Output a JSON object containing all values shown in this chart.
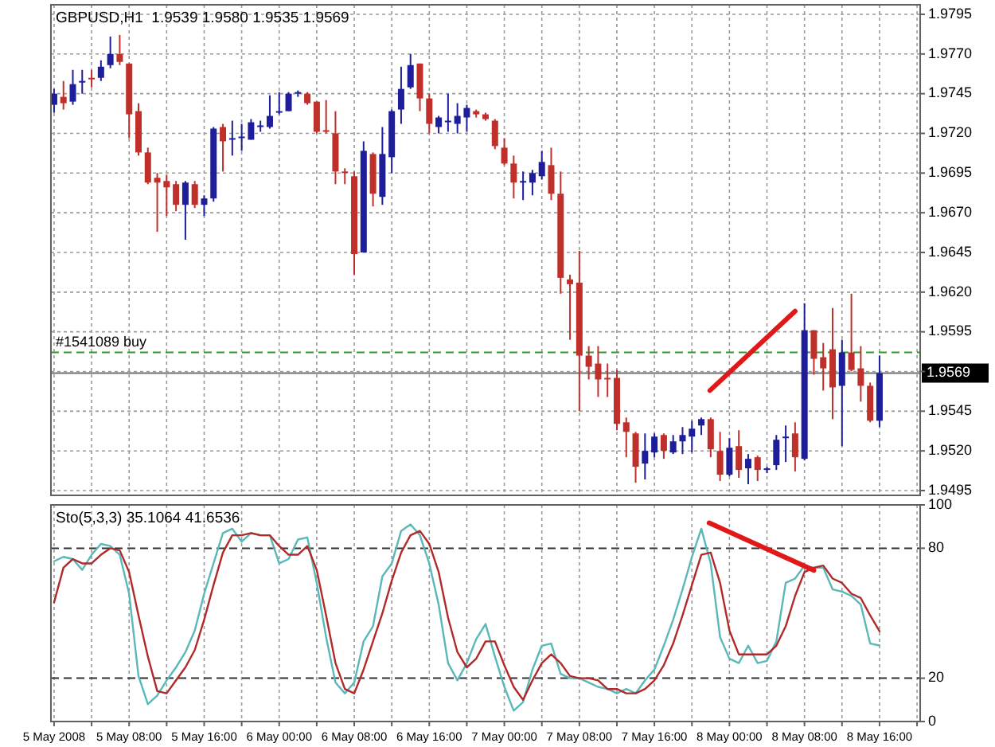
{
  "chart_data": [
    {
      "type": "candlestick",
      "title": "GBPUSD,H1  1.9539 1.9580 1.9535 1.9569",
      "colors": [
        "#1e1e9a",
        "#c0302a",
        "#1e1e9a",
        "#1e1e9a",
        "#c0302a",
        "#1e1e9a",
        "#1e1e9a",
        "#c0302a",
        "#c0302a",
        "#c0302a",
        "#c0302a",
        "#c0302a",
        "#c0302a",
        "#c0302a",
        "#1e1e9a",
        "#c0302a",
        "#1e1e9a",
        "#1e1e9a",
        "#c0302a",
        "#1e1e9a",
        "#1e1e9a",
        "#1e1e9a",
        "#1e1e9a",
        "#1e1e9a",
        "#1e1e9a",
        "#1e1e9a",
        "#1e1e9a",
        "#c0302a",
        "#c0302a",
        "#c0302a",
        "#c0302a",
        "#c0302a",
        "#c0302a",
        "#1e1e9a",
        "#c0302a",
        "#1e1e9a",
        "#1e1e9a",
        "#1e1e9a",
        "#1e1e9a",
        "#c0302a",
        "#c0302a",
        "#1e1e9a",
        "#1e1e9a",
        "#1e1e9a",
        "#1e1e9a",
        "#c0302a",
        "#c0302a",
        "#c0302a",
        "#c0302a",
        "#c0302a",
        "#1e1e9a",
        "#1e1e9a",
        "#1e1e9a",
        "#c0302a",
        "#c0302a",
        "#c0302a",
        "#c0302a",
        "#c0302a",
        "#c0302a",
        "#c0302a",
        "#c0302a",
        "#c0302a",
        "#c0302a",
        "#1e1e9a",
        "#1e1e9a",
        "#c0302a",
        "#1e1e9a",
        "#1e1e9a",
        "#1e1e9a",
        "#1e1e9a",
        "#c0302a",
        "#c0302a",
        "#1e1e9a",
        "#c0302a",
        "#1e1e9a",
        "#c0302a",
        "#1e1e9a",
        "#1e1e9a",
        "#1e1e9a",
        "#c0302a",
        "#1e1e9a",
        "#c0302a",
        "#c0302a",
        "#c0302a",
        "#1e1e9a",
        "#c0302a",
        "#c0302a",
        "#c0302a",
        "#1e1e9a"
      ],
      "x": [
        "2008-05-05T00:00",
        "2008-05-05T01:00",
        "2008-05-05T02:00",
        "2008-05-05T03:00",
        "2008-05-05T04:00",
        "2008-05-05T05:00",
        "2008-05-05T06:00",
        "2008-05-05T07:00",
        "2008-05-05T08:00",
        "2008-05-05T09:00",
        "2008-05-05T10:00",
        "2008-05-05T11:00",
        "2008-05-05T12:00",
        "2008-05-05T13:00",
        "2008-05-05T14:00",
        "2008-05-05T15:00",
        "2008-05-05T16:00",
        "2008-05-05T17:00",
        "2008-05-05T18:00",
        "2008-05-05T19:00",
        "2008-05-05T20:00",
        "2008-05-05T21:00",
        "2008-05-05T22:00",
        "2008-05-05T23:00",
        "2008-05-06T00:00",
        "2008-05-06T01:00",
        "2008-05-06T02:00",
        "2008-05-06T03:00",
        "2008-05-06T04:00",
        "2008-05-06T05:00",
        "2008-05-06T06:00",
        "2008-05-06T07:00",
        "2008-05-06T08:00",
        "2008-05-06T09:00",
        "2008-05-06T10:00",
        "2008-05-06T11:00",
        "2008-05-06T12:00",
        "2008-05-06T13:00",
        "2008-05-06T14:00",
        "2008-05-06T15:00",
        "2008-05-06T16:00",
        "2008-05-06T17:00",
        "2008-05-06T18:00",
        "2008-05-06T19:00",
        "2008-05-06T20:00",
        "2008-05-06T21:00",
        "2008-05-06T22:00",
        "2008-05-06T23:00",
        "2008-05-07T00:00",
        "2008-05-07T01:00",
        "2008-05-07T02:00",
        "2008-05-07T03:00",
        "2008-05-07T04:00",
        "2008-05-07T05:00",
        "2008-05-07T06:00",
        "2008-05-07T07:00",
        "2008-05-07T08:00",
        "2008-05-07T09:00",
        "2008-05-07T10:00",
        "2008-05-07T11:00",
        "2008-05-07T12:00",
        "2008-05-07T13:00",
        "2008-05-07T14:00",
        "2008-05-07T15:00",
        "2008-05-07T16:00",
        "2008-05-07T17:00",
        "2008-05-07T18:00",
        "2008-05-07T19:00",
        "2008-05-07T20:00",
        "2008-05-07T21:00",
        "2008-05-07T22:00",
        "2008-05-07T23:00",
        "2008-05-08T00:00",
        "2008-05-08T01:00",
        "2008-05-08T02:00",
        "2008-05-08T03:00",
        "2008-05-08T04:00",
        "2008-05-08T05:00",
        "2008-05-08T06:00",
        "2008-05-08T07:00",
        "2008-05-08T08:00",
        "2008-05-08T09:00",
        "2008-05-08T10:00",
        "2008-05-08T11:00",
        "2008-05-08T12:00",
        "2008-05-08T13:00",
        "2008-05-08T14:00",
        "2008-05-08T15:00",
        "2008-05-08T16:00"
      ],
      "ohlc": [
        [
          1.9738,
          1.9748,
          1.9733,
          1.9745
        ],
        [
          1.9743,
          1.9753,
          1.9735,
          1.9739
        ],
        [
          1.974,
          1.976,
          1.9738,
          1.9751
        ],
        [
          1.9752,
          1.976,
          1.9745,
          1.9753
        ],
        [
          1.9755,
          1.976,
          1.9749,
          1.9754
        ],
        [
          1.9755,
          1.9766,
          1.9753,
          1.9762
        ],
        [
          1.9763,
          1.9781,
          1.9761,
          1.977
        ],
        [
          1.977,
          1.9782,
          1.9763,
          1.9765
        ],
        [
          1.9764,
          1.9764,
          1.9717,
          1.9732
        ],
        [
          1.9734,
          1.9739,
          1.9706,
          1.9708
        ],
        [
          1.9708,
          1.9711,
          1.9688,
          1.9689
        ],
        [
          1.9692,
          1.9695,
          1.9658,
          1.9689
        ],
        [
          1.969,
          1.9694,
          1.9668,
          1.9686
        ],
        [
          1.9688,
          1.969,
          1.9671,
          1.9675
        ],
        [
          1.9675,
          1.969,
          1.9653,
          1.9689
        ],
        [
          1.9688,
          1.969,
          1.9673,
          1.9675
        ],
        [
          1.9675,
          1.9681,
          1.9668,
          1.9679
        ],
        [
          1.9679,
          1.9724,
          1.9677,
          1.9723
        ],
        [
          1.9724,
          1.9726,
          1.9696,
          1.9715
        ],
        [
          1.9716,
          1.9728,
          1.9706,
          1.9717
        ],
        [
          1.9717,
          1.9726,
          1.9709,
          1.9718
        ],
        [
          1.9716,
          1.9729,
          1.9716,
          1.9727
        ],
        [
          1.9724,
          1.9728,
          1.9721,
          1.9725
        ],
        [
          1.9724,
          1.9744,
          1.9723,
          1.9731
        ],
        [
          1.9733,
          1.9746,
          1.9732,
          1.9734
        ],
        [
          1.9734,
          1.9746,
          1.9734,
          1.9745
        ],
        [
          1.9745,
          1.9747,
          1.9743,
          1.9746
        ],
        [
          1.9745,
          1.9746,
          1.9738,
          1.9739
        ],
        [
          1.974,
          1.974,
          1.972,
          1.9721
        ],
        [
          1.9722,
          1.9741,
          1.972,
          1.9721
        ],
        [
          1.972,
          1.9734,
          1.9688,
          1.9696
        ],
        [
          1.9696,
          1.9698,
          1.9688,
          1.9695
        ],
        [
          1.9693,
          1.9696,
          1.9631,
          1.9644
        ],
        [
          1.9645,
          1.9715,
          1.9645,
          1.9709
        ],
        [
          1.9707,
          1.9708,
          1.9674,
          1.9682
        ],
        [
          1.968,
          1.9724,
          1.9675,
          1.9707
        ],
        [
          1.9705,
          1.9735,
          1.9695,
          1.9734
        ],
        [
          1.9735,
          1.9762,
          1.9726,
          1.9748
        ],
        [
          1.9749,
          1.977,
          1.9748,
          1.9763
        ],
        [
          1.9764,
          1.9764,
          1.9734,
          1.9742
        ],
        [
          1.9742,
          1.9745,
          1.972,
          1.9726
        ],
        [
          1.9724,
          1.9731,
          1.972,
          1.973
        ],
        [
          1.9727,
          1.9745,
          1.9721,
          1.9728
        ],
        [
          1.9726,
          1.9739,
          1.972,
          1.9731
        ],
        [
          1.973,
          1.9738,
          1.9721,
          1.9736
        ],
        [
          1.9734,
          1.9735,
          1.973,
          1.9732
        ],
        [
          1.9732,
          1.9733,
          1.9728,
          1.9729
        ],
        [
          1.9728,
          1.9729,
          1.971,
          1.9712
        ],
        [
          1.9711,
          1.9717,
          1.97,
          1.9701
        ],
        [
          1.9701,
          1.9706,
          1.9679,
          1.9689
        ],
        [
          1.9689,
          1.9696,
          1.9678,
          1.969
        ],
        [
          1.9689,
          1.9697,
          1.9681,
          1.9695
        ],
        [
          1.9693,
          1.9709,
          1.9691,
          1.9702
        ],
        [
          1.97,
          1.9711,
          1.9678,
          1.9682
        ],
        [
          1.9682,
          1.9696,
          1.9619,
          1.9629
        ],
        [
          1.9628,
          1.9631,
          1.959,
          1.9625
        ],
        [
          1.9626,
          1.9646,
          1.9545,
          1.958
        ],
        [
          1.958,
          1.9586,
          1.9565,
          1.9573
        ],
        [
          1.9575,
          1.9586,
          1.9554,
          1.9565
        ],
        [
          1.9566,
          1.9575,
          1.9554,
          1.9565
        ],
        [
          1.9566,
          1.9571,
          1.9533,
          1.9537
        ],
        [
          1.9538,
          1.9541,
          1.9516,
          1.9532
        ],
        [
          1.9531,
          1.9532,
          1.95,
          1.951
        ],
        [
          1.9512,
          1.9531,
          1.9502,
          1.952
        ],
        [
          1.9519,
          1.9531,
          1.9516,
          1.9529
        ],
        [
          1.953,
          1.9531,
          1.9515,
          1.952
        ],
        [
          1.9519,
          1.953,
          1.9518,
          1.9526
        ],
        [
          1.9526,
          1.9535,
          1.9518,
          1.953
        ],
        [
          1.9529,
          1.9539,
          1.9519,
          1.9534
        ],
        [
          1.9536,
          1.9541,
          1.953,
          1.954
        ],
        [
          1.954,
          1.9541,
          1.9516,
          1.9521
        ],
        [
          1.952,
          1.9532,
          1.9501,
          1.9505
        ],
        [
          1.9505,
          1.9528,
          1.9504,
          1.9522
        ],
        [
          1.9523,
          1.9533,
          1.9503,
          1.9508
        ],
        [
          1.9509,
          1.9518,
          1.9499,
          1.9515
        ],
        [
          1.9516,
          1.9517,
          1.9501,
          1.9508
        ],
        [
          1.9508,
          1.951,
          1.9506,
          1.9509
        ],
        [
          1.9511,
          1.953,
          1.9508,
          1.9527
        ],
        [
          1.9529,
          1.9536,
          1.9513,
          1.9529
        ],
        [
          1.9531,
          1.9538,
          1.9507,
          1.9516
        ],
        [
          1.9515,
          1.9613,
          1.9514,
          1.9596
        ],
        [
          1.9596,
          1.9596,
          1.9568,
          1.9578
        ],
        [
          1.9579,
          1.9588,
          1.9558,
          1.9572
        ],
        [
          1.9584,
          1.961,
          1.954,
          1.956
        ],
        [
          1.9561,
          1.959,
          1.9523,
          1.9582
        ],
        [
          1.9582,
          1.9619,
          1.957,
          1.9571
        ],
        [
          1.9572,
          1.9586,
          1.9551,
          1.9561
        ],
        [
          1.9561,
          1.9563,
          1.9538,
          1.9539
        ],
        [
          1.9539,
          1.958,
          1.9535,
          1.9569
        ]
      ],
      "series": [
        {
          "type": "line",
          "color": "#e01818",
          "x": [
            "2008-05-07T21:55",
            "2008-05-08T07:00"
          ],
          "values": [
            1.9558,
            1.9608
          ]
        }
      ],
      "xlim": [
        "2008-05-04T23:40",
        "2008-05-08T20:20"
      ],
      "xticks": [
        {
          "value": "2008-05-05T00:00",
          "label": null
        },
        {
          "value": "2008-05-05T04:00",
          "label": null
        },
        {
          "value": "2008-05-05T08:00",
          "label": null
        },
        {
          "value": "2008-05-05T12:00",
          "label": null
        },
        {
          "value": "2008-05-05T16:00",
          "label": null
        },
        {
          "value": "2008-05-05T20:00",
          "label": null
        },
        {
          "value": "2008-05-06T00:00",
          "label": null
        },
        {
          "value": "2008-05-06T04:00",
          "label": null
        },
        {
          "value": "2008-05-06T08:00",
          "label": null
        },
        {
          "value": "2008-05-06T12:00",
          "label": null
        },
        {
          "value": "2008-05-06T16:00",
          "label": null
        },
        {
          "value": "2008-05-06T20:00",
          "label": null
        },
        {
          "value": "2008-05-07T00:00",
          "label": null
        },
        {
          "value": "2008-05-07T04:00",
          "label": null
        },
        {
          "value": "2008-05-07T08:00",
          "label": null
        },
        {
          "value": "2008-05-07T12:00",
          "label": null
        },
        {
          "value": "2008-05-07T16:00",
          "label": null
        },
        {
          "value": "2008-05-07T20:00",
          "label": null
        },
        {
          "value": "2008-05-08T00:00",
          "label": null
        },
        {
          "value": "2008-05-08T04:00",
          "label": null
        },
        {
          "value": "2008-05-08T08:00",
          "label": null
        },
        {
          "value": "2008-05-08T12:00",
          "label": null
        },
        {
          "value": "2008-05-08T16:00",
          "label": null
        },
        {
          "value": "2008-05-08T20:00",
          "label": null
        }
      ],
      "ylim": [
        1.9492,
        1.9801
      ],
      "yticks": [
        1.9495,
        {
          "value": 1.952,
          "label": "1.9520"
        },
        1.9545,
        {
          "value": 1.957,
          "label": null
        },
        1.9595,
        {
          "value": 1.962,
          "label": "1.9620"
        },
        1.9645,
        {
          "value": 1.967,
          "label": "1.9670"
        },
        1.9695,
        {
          "value": 1.972,
          "label": "1.9720"
        },
        1.9745,
        {
          "value": 1.977,
          "label": "1.9770"
        },
        1.9795
      ],
      "grid": true,
      "tick_labels": "y",
      "ref_lines": [
        {
          "axis": "y",
          "value": 1.9582,
          "label": "#1541089 buy",
          "color": "#2e9a2e",
          "line_style": "dashed"
        },
        {
          "axis": "y",
          "value": 1.9569,
          "label": "1.9569",
          "color": "#707070",
          "line_style": "solid"
        }
      ]
    },
    {
      "type": "line",
      "title": "Sto(5,3,3) 35.1064 41.6536",
      "x": [
        "2008-05-05T00:00",
        "2008-05-05T01:00",
        "2008-05-05T02:00",
        "2008-05-05T03:00",
        "2008-05-05T04:00",
        "2008-05-05T05:00",
        "2008-05-05T06:00",
        "2008-05-05T07:00",
        "2008-05-05T08:00",
        "2008-05-05T09:00",
        "2008-05-05T10:00",
        "2008-05-05T11:00",
        "2008-05-05T12:00",
        "2008-05-05T13:00",
        "2008-05-05T14:00",
        "2008-05-05T15:00",
        "2008-05-05T16:00",
        "2008-05-05T17:00",
        "2008-05-05T18:00",
        "2008-05-05T19:00",
        "2008-05-05T20:00",
        "2008-05-05T21:00",
        "2008-05-05T22:00",
        "2008-05-05T23:00",
        "2008-05-06T00:00",
        "2008-05-06T01:00",
        "2008-05-06T02:00",
        "2008-05-06T03:00",
        "2008-05-06T04:00",
        "2008-05-06T05:00",
        "2008-05-06T06:00",
        "2008-05-06T07:00",
        "2008-05-06T08:00",
        "2008-05-06T09:00",
        "2008-05-06T10:00",
        "2008-05-06T11:00",
        "2008-05-06T12:00",
        "2008-05-06T13:00",
        "2008-05-06T14:00",
        "2008-05-06T15:00",
        "2008-05-06T16:00",
        "2008-05-06T17:00",
        "2008-05-06T18:00",
        "2008-05-06T19:00",
        "2008-05-06T20:00",
        "2008-05-06T21:00",
        "2008-05-06T22:00",
        "2008-05-06T23:00",
        "2008-05-07T00:00",
        "2008-05-07T01:00",
        "2008-05-07T02:00",
        "2008-05-07T03:00",
        "2008-05-07T04:00",
        "2008-05-07T05:00",
        "2008-05-07T06:00",
        "2008-05-07T07:00",
        "2008-05-07T08:00",
        "2008-05-07T09:00",
        "2008-05-07T10:00",
        "2008-05-07T11:00",
        "2008-05-07T12:00",
        "2008-05-07T13:00",
        "2008-05-07T14:00",
        "2008-05-07T15:00",
        "2008-05-07T16:00",
        "2008-05-07T17:00",
        "2008-05-07T18:00",
        "2008-05-07T19:00",
        "2008-05-07T20:00",
        "2008-05-07T21:00",
        "2008-05-07T22:00",
        "2008-05-07T23:00",
        "2008-05-08T00:00",
        "2008-05-08T01:00",
        "2008-05-08T02:00",
        "2008-05-08T03:00",
        "2008-05-08T04:00",
        "2008-05-08T05:00",
        "2008-05-08T06:00",
        "2008-05-08T07:00",
        "2008-05-08T08:00",
        "2008-05-08T09:00",
        "2008-05-08T10:00",
        "2008-05-08T11:00",
        "2008-05-08T12:00",
        "2008-05-08T13:00",
        "2008-05-08T14:00",
        "2008-05-08T15:00",
        "2008-05-08T16:00"
      ],
      "series": [
        {
          "color": "#5ab8b8",
          "values": [
            74,
            76,
            75,
            70,
            77,
            82,
            81,
            77,
            59,
            21,
            8,
            12,
            19,
            25,
            32,
            42,
            59,
            73,
            87,
            89,
            83,
            87,
            86,
            86,
            73,
            75,
            84,
            85,
            64,
            39,
            18,
            13,
            18,
            37,
            44,
            67,
            73,
            88,
            91,
            86,
            73,
            54,
            27,
            19,
            27,
            38,
            45,
            30,
            16,
            5,
            9,
            24,
            35,
            36,
            22,
            20,
            20,
            18,
            16,
            15,
            13,
            15,
            13,
            19,
            24,
            35,
            47,
            61,
            76,
            89,
            73,
            39,
            29,
            27,
            35,
            27,
            28,
            37,
            64,
            66,
            72,
            71,
            71,
            61,
            60,
            58,
            54,
            36,
            35.1064
          ]
        },
        {
          "color": "#b02a2a",
          "values": [
            55,
            71,
            75,
            73,
            73,
            77,
            80,
            79,
            69,
            49,
            30,
            14,
            13,
            19,
            25,
            33,
            47,
            63,
            78,
            86,
            86,
            87,
            86,
            86,
            81,
            77,
            77,
            81,
            70,
            49,
            27,
            15,
            13,
            24,
            37,
            50,
            65,
            78,
            86,
            88,
            82,
            69,
            48,
            32,
            25,
            29,
            37,
            37,
            26,
            16,
            10,
            19,
            27,
            31,
            27,
            21,
            20,
            20,
            19,
            15,
            15,
            13,
            13,
            15,
            19,
            26,
            36,
            49,
            63,
            77,
            78,
            64,
            42,
            31,
            31,
            31,
            31,
            35,
            44,
            58,
            69,
            71,
            72,
            66,
            64,
            59,
            57,
            49,
            41.6536
          ]
        },
        {
          "color": "#e01818",
          "x": [
            "2008-05-07T21:50",
            "2008-05-08T09:00"
          ],
          "values": [
            91.7,
            69.8
          ]
        }
      ],
      "xlim": [
        "2008-05-04T23:40",
        "2008-05-08T20:20"
      ],
      "xticks": [
        {
          "value": "2008-05-05T00:00",
          "label": "5 May 2008"
        },
        {
          "value": "2008-05-05T04:00",
          "label": null
        },
        {
          "value": "2008-05-05T08:00",
          "label": "5 May 08:00"
        },
        {
          "value": "2008-05-05T12:00",
          "label": null
        },
        {
          "value": "2008-05-05T16:00",
          "label": "5 May 16:00"
        },
        {
          "value": "2008-05-05T20:00",
          "label": null
        },
        {
          "value": "2008-05-06T00:00",
          "label": "6 May 00:00"
        },
        {
          "value": "2008-05-06T04:00",
          "label": null
        },
        {
          "value": "2008-05-06T08:00",
          "label": "6 May 08:00"
        },
        {
          "value": "2008-05-06T12:00",
          "label": null
        },
        {
          "value": "2008-05-06T16:00",
          "label": "6 May 16:00"
        },
        {
          "value": "2008-05-06T20:00",
          "label": null
        },
        {
          "value": "2008-05-07T00:00",
          "label": "7 May 00:00"
        },
        {
          "value": "2008-05-07T04:00",
          "label": null
        },
        {
          "value": "2008-05-07T08:00",
          "label": "7 May 08:00"
        },
        {
          "value": "2008-05-07T12:00",
          "label": null
        },
        {
          "value": "2008-05-07T16:00",
          "label": "7 May 16:00"
        },
        {
          "value": "2008-05-07T20:00",
          "label": null
        },
        {
          "value": "2008-05-08T00:00",
          "label": "8 May 00:00"
        },
        {
          "value": "2008-05-08T04:00",
          "label": null
        },
        {
          "value": "2008-05-08T08:00",
          "label": "8 May 08:00"
        },
        {
          "value": "2008-05-08T12:00",
          "label": null
        },
        {
          "value": "2008-05-08T16:00",
          "label": "8 May 16:00"
        },
        {
          "value": "2008-05-08T20:00",
          "label": null
        }
      ],
      "ylim": [
        0,
        100
      ],
      "yticks": [
        0,
        20,
        80,
        100
      ],
      "grid": "x",
      "ref_lines": [
        {
          "axis": "y",
          "value": 20,
          "color": "#303030",
          "line_style": "dashed"
        },
        {
          "axis": "y",
          "value": 80,
          "color": "#303030",
          "line_style": "dashed"
        }
      ]
    }
  ]
}
